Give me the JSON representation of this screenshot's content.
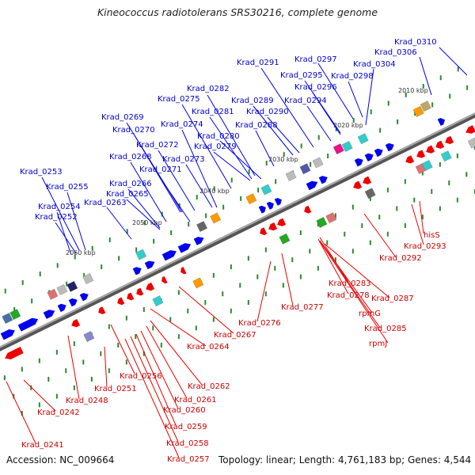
{
  "title": "Kineococcus radiotolerans SRS30216, complete genome",
  "accession": "Accession: NC_009664",
  "summary": "Topology: linear; Length: 4,761,183 bp; Genes: 4,544",
  "colors": {
    "forward_gene": "#0000ee",
    "reverse_gene": "#ee0000",
    "backbone": "#888888",
    "tick": "#2a8a2a"
  },
  "ruler": [
    "2010 kbp",
    "2020 kbp",
    "2030 kbp",
    "2040 kbp",
    "2050 kbp",
    "2060 kbp"
  ],
  "forward_labels": [
    "Krad_0310",
    "Krad_0306",
    "Krad_0304",
    "Krad_0297",
    "Krad_0298",
    "Krad_0291",
    "Krad_0295",
    "Krad_0296",
    "Krad_0294",
    "Krad_0282",
    "Krad_0289",
    "Krad_0290",
    "Krad_0288",
    "Krad_0275",
    "Krad_0281",
    "Krad_0280",
    "Krad_0279",
    "Krad_0274",
    "Krad_0269",
    "Krad_0270",
    "Krad_0272",
    "Krad_0268",
    "Krad_0271",
    "Krad_0273",
    "Krad_0266",
    "Krad_0265",
    "Krad_0263",
    "Krad_0253",
    "Krad_0255",
    "Krad_0254",
    "Krad_0252"
  ],
  "reverse_labels": [
    "hisS",
    "Krad_0293",
    "Krad_0292",
    "Krad_0283",
    "Krad_0278",
    "Krad_0287",
    "rpmG",
    "Krad_0285",
    "rpmJ",
    "Krad_0277",
    "Krad_0276",
    "Krad_0267",
    "Krad_0264",
    "Krad_0262",
    "Krad_0261",
    "Krad_0260",
    "Krad_0259",
    "Krad_0258",
    "Krad_0257",
    "Krad_0256",
    "Krad_0251",
    "Krad_0248",
    "Krad_0242",
    "Krad_0241"
  ]
}
